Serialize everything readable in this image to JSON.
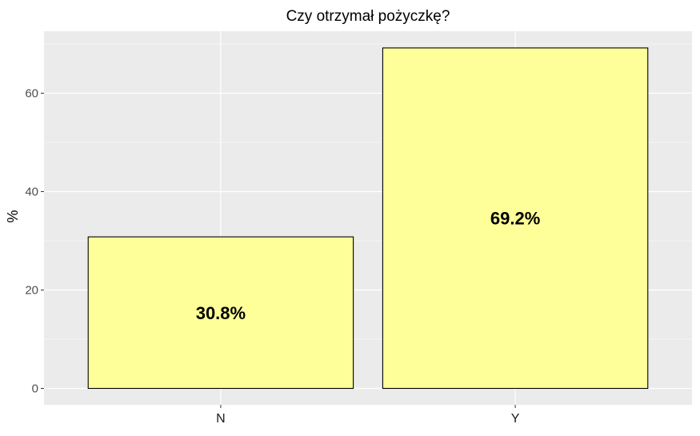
{
  "chart_data": {
    "type": "bar",
    "title": "Czy otrzymał pożyczkę?",
    "xlabel": "",
    "ylabel": "%",
    "categories": [
      "N",
      "Y"
    ],
    "values": [
      30.8,
      69.2
    ],
    "data_labels": [
      "30.8%",
      "69.2%"
    ],
    "ylim": [
      0,
      72
    ],
    "y_ticks": [
      0,
      20,
      40,
      60
    ],
    "y_tick_labels": [
      "0",
      "20",
      "40",
      "60"
    ],
    "grid": true,
    "legend": "none",
    "colors": {
      "bar_fill": "#FFFF99",
      "bar_stroke": "#000000",
      "panel_background": "#EBEBEB",
      "grid_line": "#FFFFFF"
    }
  }
}
